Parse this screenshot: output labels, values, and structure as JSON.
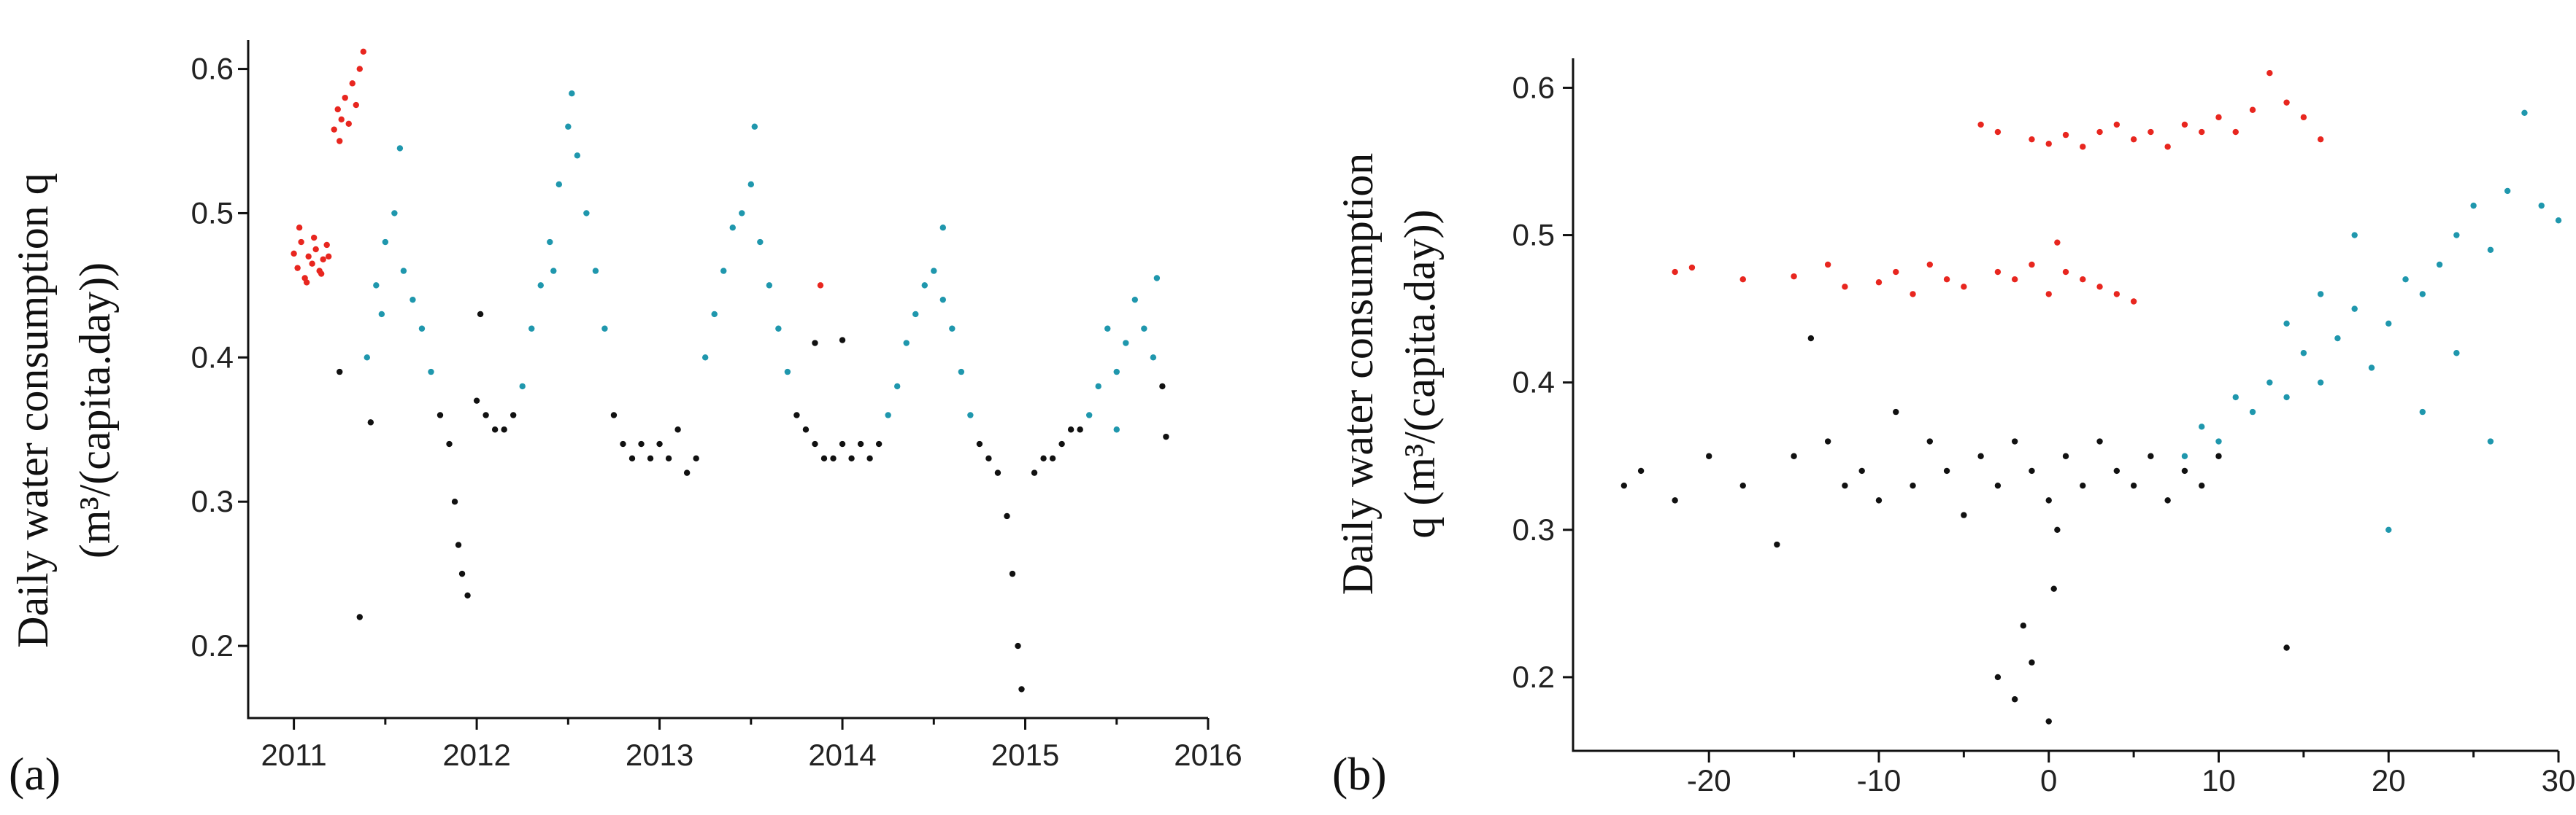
{
  "chart_data": [
    {
      "type": "scatter",
      "panel_label": "(a)",
      "ylabel_line1": "Daily water consumption q",
      "ylabel_line2": "(m³/(capita.day))",
      "xlabel": "",
      "xlim": [
        2010.75,
        2016.0
      ],
      "ylim": [
        0.15,
        0.62
      ],
      "x_ticks": [
        2011,
        2012,
        2013,
        2014,
        2015,
        2016
      ],
      "x_tick_labels": [
        "2011",
        "2012",
        "2013",
        "2014",
        "2015",
        "2016"
      ],
      "y_ticks": [
        0.2,
        0.3,
        0.4,
        0.5,
        0.6
      ],
      "y_tick_labels": [
        "0.2",
        "0.3",
        "0.4",
        "0.5",
        "0.6"
      ],
      "colors": {
        "red": "#e8261f",
        "teal": "#1f97ad",
        "black": "#111111"
      },
      "series": [
        {
          "name": "red",
          "color_key": "red",
          "points": [
            [
              2011.0,
              0.472
            ],
            [
              2011.02,
              0.462
            ],
            [
              2011.04,
              0.48
            ],
            [
              2011.06,
              0.455
            ],
            [
              2011.08,
              0.47
            ],
            [
              2011.1,
              0.465
            ],
            [
              2011.12,
              0.475
            ],
            [
              2011.14,
              0.46
            ],
            [
              2011.16,
              0.468
            ],
            [
              2011.18,
              0.478
            ],
            [
              2011.03,
              0.49
            ],
            [
              2011.07,
              0.452
            ],
            [
              2011.11,
              0.483
            ],
            [
              2011.15,
              0.458
            ],
            [
              2011.19,
              0.47
            ],
            [
              2011.22,
              0.558
            ],
            [
              2011.24,
              0.572
            ],
            [
              2011.26,
              0.565
            ],
            [
              2011.28,
              0.58
            ],
            [
              2011.3,
              0.562
            ],
            [
              2011.32,
              0.59
            ],
            [
              2011.34,
              0.575
            ],
            [
              2011.36,
              0.6
            ],
            [
              2011.38,
              0.612
            ],
            [
              2011.25,
              0.55
            ]
          ]
        },
        {
          "name": "teal",
          "color_key": "teal",
          "points": [
            [
              2011.4,
              0.4
            ],
            [
              2011.45,
              0.45
            ],
            [
              2011.5,
              0.48
            ],
            [
              2011.55,
              0.5
            ],
            [
              2011.6,
              0.46
            ],
            [
              2011.65,
              0.44
            ],
            [
              2011.7,
              0.42
            ],
            [
              2011.75,
              0.39
            ],
            [
              2011.58,
              0.545
            ],
            [
              2011.48,
              0.43
            ],
            [
              2012.25,
              0.38
            ],
            [
              2012.3,
              0.42
            ],
            [
              2012.35,
              0.45
            ],
            [
              2012.4,
              0.48
            ],
            [
              2012.45,
              0.52
            ],
            [
              2012.5,
              0.56
            ],
            [
              2012.55,
              0.54
            ],
            [
              2012.6,
              0.5
            ],
            [
              2012.65,
              0.46
            ],
            [
              2012.7,
              0.42
            ],
            [
              2012.52,
              0.583
            ],
            [
              2012.42,
              0.46
            ],
            [
              2013.25,
              0.4
            ],
            [
              2013.3,
              0.43
            ],
            [
              2013.35,
              0.46
            ],
            [
              2013.4,
              0.49
            ],
            [
              2013.45,
              0.5
            ],
            [
              2013.5,
              0.52
            ],
            [
              2013.55,
              0.48
            ],
            [
              2013.6,
              0.45
            ],
            [
              2013.65,
              0.42
            ],
            [
              2013.7,
              0.39
            ],
            [
              2013.52,
              0.56
            ],
            [
              2014.25,
              0.36
            ],
            [
              2014.3,
              0.38
            ],
            [
              2014.35,
              0.41
            ],
            [
              2014.4,
              0.43
            ],
            [
              2014.45,
              0.45
            ],
            [
              2014.5,
              0.46
            ],
            [
              2014.55,
              0.44
            ],
            [
              2014.6,
              0.42
            ],
            [
              2014.65,
              0.39
            ],
            [
              2014.7,
              0.36
            ],
            [
              2014.55,
              0.49
            ],
            [
              2015.35,
              0.36
            ],
            [
              2015.4,
              0.38
            ],
            [
              2015.45,
              0.42
            ],
            [
              2015.5,
              0.39
            ],
            [
              2015.55,
              0.41
            ],
            [
              2015.6,
              0.44
            ],
            [
              2015.65,
              0.42
            ],
            [
              2015.7,
              0.4
            ],
            [
              2015.72,
              0.455
            ],
            [
              2015.5,
              0.35
            ]
          ]
        },
        {
          "name": "black",
          "color_key": "black",
          "points": [
            [
              2011.8,
              0.36
            ],
            [
              2011.85,
              0.34
            ],
            [
              2011.88,
              0.3
            ],
            [
              2011.9,
              0.27
            ],
            [
              2011.92,
              0.25
            ],
            [
              2011.95,
              0.235
            ],
            [
              2012.0,
              0.37
            ],
            [
              2012.05,
              0.36
            ],
            [
              2012.1,
              0.35
            ],
            [
              2012.15,
              0.35
            ],
            [
              2012.2,
              0.36
            ],
            [
              2012.02,
              0.43
            ],
            [
              2011.36,
              0.22
            ],
            [
              2011.42,
              0.355
            ],
            [
              2011.25,
              0.39
            ],
            [
              2012.75,
              0.36
            ],
            [
              2012.8,
              0.34
            ],
            [
              2012.85,
              0.33
            ],
            [
              2012.9,
              0.34
            ],
            [
              2012.95,
              0.33
            ],
            [
              2013.0,
              0.34
            ],
            [
              2013.05,
              0.33
            ],
            [
              2013.1,
              0.35
            ],
            [
              2013.15,
              0.32
            ],
            [
              2013.2,
              0.33
            ],
            [
              2013.75,
              0.36
            ],
            [
              2013.8,
              0.35
            ],
            [
              2013.85,
              0.34
            ],
            [
              2013.9,
              0.33
            ],
            [
              2013.95,
              0.33
            ],
            [
              2014.0,
              0.34
            ],
            [
              2014.05,
              0.33
            ],
            [
              2014.1,
              0.34
            ],
            [
              2014.15,
              0.33
            ],
            [
              2014.2,
              0.34
            ],
            [
              2013.85,
              0.41
            ],
            [
              2014.0,
              0.412
            ],
            [
              2014.75,
              0.34
            ],
            [
              2014.8,
              0.33
            ],
            [
              2014.85,
              0.32
            ],
            [
              2014.9,
              0.29
            ],
            [
              2014.93,
              0.25
            ],
            [
              2014.96,
              0.2
            ],
            [
              2014.98,
              0.17
            ],
            [
              2015.05,
              0.32
            ],
            [
              2015.1,
              0.33
            ],
            [
              2015.15,
              0.33
            ],
            [
              2015.2,
              0.34
            ],
            [
              2015.25,
              0.35
            ],
            [
              2015.3,
              0.35
            ],
            [
              2015.75,
              0.38
            ],
            [
              2015.77,
              0.345
            ]
          ]
        }
      ],
      "extra_points": [
        {
          "x": 2013.88,
          "y": 0.45,
          "color_key": "red"
        }
      ]
    },
    {
      "type": "scatter",
      "panel_label": "(b)",
      "ylabel_line1": "Daily water consumption",
      "ylabel_line2": "q (m³/(capita.day))",
      "xlabel": "",
      "xlim": [
        -28,
        30
      ],
      "ylim": [
        0.15,
        0.62
      ],
      "x_ticks": [
        -20,
        -10,
        0,
        10,
        20,
        30
      ],
      "x_tick_labels": [
        "-20",
        "-10",
        "0",
        "10",
        "20",
        "30"
      ],
      "y_ticks": [
        0.2,
        0.3,
        0.4,
        0.5,
        0.6
      ],
      "y_tick_labels": [
        "0.2",
        "0.3",
        "0.4",
        "0.5",
        "0.6"
      ],
      "colors": {
        "red": "#e8261f",
        "teal": "#1f97ad",
        "black": "#111111"
      },
      "series": [
        {
          "name": "red",
          "color_key": "red",
          "points": [
            [
              -22,
              0.475
            ],
            [
              -21,
              0.478
            ],
            [
              -18,
              0.47
            ],
            [
              -15,
              0.472
            ],
            [
              -13,
              0.48
            ],
            [
              -12,
              0.465
            ],
            [
              -10,
              0.468
            ],
            [
              -9,
              0.475
            ],
            [
              -8,
              0.46
            ],
            [
              -7,
              0.48
            ],
            [
              -6,
              0.47
            ],
            [
              -5,
              0.465
            ],
            [
              -3,
              0.475
            ],
            [
              -2,
              0.47
            ],
            [
              -1,
              0.48
            ],
            [
              0,
              0.46
            ],
            [
              1,
              0.475
            ],
            [
              2,
              0.47
            ],
            [
              3,
              0.465
            ],
            [
              4,
              0.46
            ],
            [
              5,
              0.455
            ],
            [
              0.5,
              0.495
            ],
            [
              -4,
              0.575
            ],
            [
              -3,
              0.57
            ],
            [
              -1,
              0.565
            ],
            [
              0,
              0.562
            ],
            [
              1,
              0.568
            ],
            [
              2,
              0.56
            ],
            [
              3,
              0.57
            ],
            [
              4,
              0.575
            ],
            [
              5,
              0.565
            ],
            [
              6,
              0.57
            ],
            [
              7,
              0.56
            ],
            [
              8,
              0.575
            ],
            [
              9,
              0.57
            ],
            [
              10,
              0.58
            ],
            [
              11,
              0.57
            ],
            [
              12,
              0.585
            ],
            [
              13,
              0.61
            ],
            [
              14,
              0.59
            ],
            [
              15,
              0.58
            ],
            [
              16,
              0.565
            ]
          ]
        },
        {
          "name": "teal",
          "color_key": "teal",
          "points": [
            [
              8,
              0.35
            ],
            [
              9,
              0.37
            ],
            [
              10,
              0.36
            ],
            [
              11,
              0.39
            ],
            [
              12,
              0.38
            ],
            [
              13,
              0.4
            ],
            [
              14,
              0.39
            ],
            [
              15,
              0.42
            ],
            [
              16,
              0.4
            ],
            [
              17,
              0.43
            ],
            [
              18,
              0.45
            ],
            [
              19,
              0.41
            ],
            [
              20,
              0.44
            ],
            [
              21,
              0.47
            ],
            [
              22,
              0.46
            ],
            [
              23,
              0.48
            ],
            [
              24,
              0.5
            ],
            [
              25,
              0.52
            ],
            [
              26,
              0.49
            ],
            [
              27,
              0.53
            ],
            [
              28,
              0.583
            ],
            [
              29,
              0.52
            ],
            [
              30,
              0.51
            ],
            [
              20,
              0.3
            ],
            [
              26,
              0.36
            ],
            [
              18,
              0.5
            ],
            [
              22,
              0.38
            ],
            [
              16,
              0.46
            ],
            [
              24,
              0.42
            ],
            [
              14,
              0.44
            ]
          ]
        },
        {
          "name": "black",
          "color_key": "black",
          "points": [
            [
              -25,
              0.33
            ],
            [
              -24,
              0.34
            ],
            [
              -22,
              0.32
            ],
            [
              -20,
              0.35
            ],
            [
              -18,
              0.33
            ],
            [
              -16,
              0.29
            ],
            [
              -15,
              0.35
            ],
            [
              -14,
              0.43
            ],
            [
              -13,
              0.36
            ],
            [
              -12,
              0.33
            ],
            [
              -11,
              0.34
            ],
            [
              -10,
              0.32
            ],
            [
              -9,
              0.38
            ],
            [
              -8,
              0.33
            ],
            [
              -7,
              0.36
            ],
            [
              -6,
              0.34
            ],
            [
              -5,
              0.31
            ],
            [
              -4,
              0.35
            ],
            [
              -3,
              0.33
            ],
            [
              -2,
              0.36
            ],
            [
              -1,
              0.34
            ],
            [
              0,
              0.32
            ],
            [
              1,
              0.35
            ],
            [
              2,
              0.33
            ],
            [
              3,
              0.36
            ],
            [
              4,
              0.34
            ],
            [
              5,
              0.33
            ],
            [
              6,
              0.35
            ],
            [
              7,
              0.32
            ],
            [
              8,
              0.34
            ],
            [
              9,
              0.33
            ],
            [
              10,
              0.35
            ],
            [
              -3,
              0.2
            ],
            [
              -2,
              0.185
            ],
            [
              -1,
              0.21
            ],
            [
              0,
              0.17
            ],
            [
              0.3,
              0.26
            ],
            [
              0.5,
              0.3
            ],
            [
              -1.5,
              0.235
            ],
            [
              14,
              0.22
            ]
          ]
        }
      ],
      "extra_points": []
    }
  ]
}
